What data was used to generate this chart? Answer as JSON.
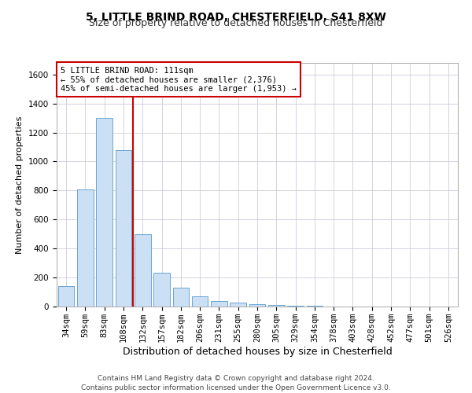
{
  "title1": "5, LITTLE BRIND ROAD, CHESTERFIELD, S41 8XW",
  "title2": "Size of property relative to detached houses in Chesterfield",
  "xlabel": "Distribution of detached houses by size in Chesterfield",
  "ylabel": "Number of detached properties",
  "bar_labels": [
    "34sqm",
    "59sqm",
    "83sqm",
    "108sqm",
    "132sqm",
    "157sqm",
    "182sqm",
    "206sqm",
    "231sqm",
    "255sqm",
    "280sqm",
    "305sqm",
    "329sqm",
    "354sqm",
    "378sqm",
    "403sqm",
    "428sqm",
    "452sqm",
    "477sqm",
    "501sqm",
    "526sqm"
  ],
  "bar_values": [
    140,
    810,
    1300,
    1080,
    500,
    235,
    130,
    70,
    38,
    25,
    15,
    10,
    5,
    3,
    2,
    1,
    1,
    0,
    0,
    0,
    0
  ],
  "bar_color": "#cce0f5",
  "bar_edge_color": "#5599cc",
  "property_line_x": 3.5,
  "property_line_color": "#cc0000",
  "annotation_text": "5 LITTLE BRIND ROAD: 111sqm\n← 55% of detached houses are smaller (2,376)\n45% of semi-detached houses are larger (1,953) →",
  "annotation_box_color": "#cc0000",
  "ylim": [
    0,
    1680
  ],
  "yticks": [
    0,
    200,
    400,
    600,
    800,
    1000,
    1200,
    1400,
    1600
  ],
  "grid_color": "#ccccdd",
  "footer_text": "Contains HM Land Registry data © Crown copyright and database right 2024.\nContains public sector information licensed under the Open Government Licence v3.0.",
  "title1_fontsize": 10,
  "title2_fontsize": 9,
  "xlabel_fontsize": 9,
  "ylabel_fontsize": 8,
  "tick_fontsize": 7.5,
  "annotation_fontsize": 7.5,
  "footer_fontsize": 6.5
}
